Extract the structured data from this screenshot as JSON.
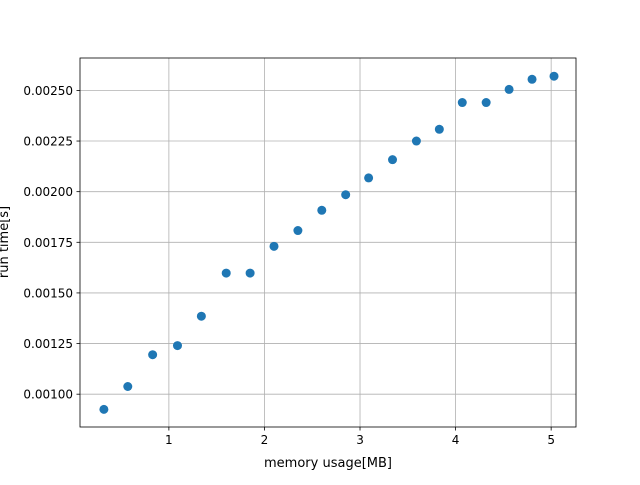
{
  "chart_data": {
    "type": "scatter",
    "title": "",
    "xlabel": "memory usage[MB]",
    "ylabel": "run time[s]",
    "xlim": [
      0.07,
      5.26
    ],
    "ylim": [
      0.000838,
      0.00266
    ],
    "grid": true,
    "color": "#1f77b4",
    "x_ticks": [
      1,
      2,
      3,
      4,
      5
    ],
    "x_tick_labels": [
      "1",
      "2",
      "3",
      "4",
      "5"
    ],
    "y_ticks": [
      0.001,
      0.00125,
      0.0015,
      0.00175,
      0.002,
      0.00225,
      0.0025
    ],
    "y_tick_labels": [
      "0.00100",
      "0.00125",
      "0.00150",
      "0.00175",
      "0.00200",
      "0.00225",
      "0.00250"
    ],
    "series": [
      {
        "x": [
          0.32,
          0.57,
          0.83,
          1.09,
          1.34,
          1.6,
          1.85,
          2.1,
          2.35,
          2.6,
          2.85,
          3.09,
          3.34,
          3.59,
          3.83,
          4.07,
          4.32,
          4.56,
          4.8,
          5.03
        ],
        "y": [
          0.000925,
          0.001038,
          0.001195,
          0.00124,
          0.001385,
          0.001598,
          0.001598,
          0.00173,
          0.001808,
          0.001908,
          0.001985,
          0.002068,
          0.002158,
          0.00225,
          0.002308,
          0.00244,
          0.00244,
          0.002505,
          0.002555,
          0.00257
        ]
      }
    ]
  }
}
